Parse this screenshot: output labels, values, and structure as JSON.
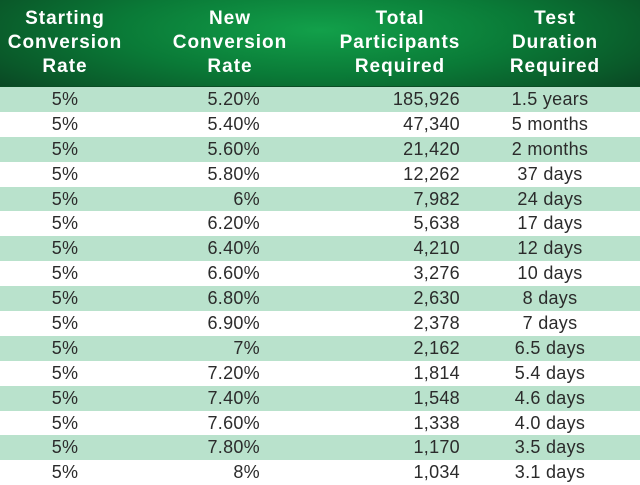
{
  "headers": {
    "starting": "Starting\nConversion\nRate",
    "new": "New\nConversion\nRate",
    "total": "Total\nParticipants\nRequired",
    "duration": "Test\nDuration\nRequired"
  },
  "rows": [
    {
      "start": "5%",
      "new": "5.20%",
      "total": "185,926",
      "duration": "1.5 years"
    },
    {
      "start": "5%",
      "new": "5.40%",
      "total": "47,340",
      "duration": "5 months"
    },
    {
      "start": "5%",
      "new": "5.60%",
      "total": "21,420",
      "duration": "2 months"
    },
    {
      "start": "5%",
      "new": "5.80%",
      "total": "12,262",
      "duration": "37 days"
    },
    {
      "start": "5%",
      "new": "6%",
      "total": "7,982",
      "duration": "24 days"
    },
    {
      "start": "5%",
      "new": "6.20%",
      "total": "5,638",
      "duration": "17 days"
    },
    {
      "start": "5%",
      "new": "6.40%",
      "total": "4,210",
      "duration": "12 days"
    },
    {
      "start": "5%",
      "new": "6.60%",
      "total": "3,276",
      "duration": "10 days"
    },
    {
      "start": "5%",
      "new": "6.80%",
      "total": "2,630",
      "duration": "8 days"
    },
    {
      "start": "5%",
      "new": "6.90%",
      "total": "2,378",
      "duration": "7 days"
    },
    {
      "start": "5%",
      "new": "7%",
      "total": "2,162",
      "duration": "6.5 days"
    },
    {
      "start": "5%",
      "new": "7.20%",
      "total": "1,814",
      "duration": "5.4 days"
    },
    {
      "start": "5%",
      "new": "7.40%",
      "total": "1,548",
      "duration": "4.6 days"
    },
    {
      "start": "5%",
      "new": "7.60%",
      "total": "1,338",
      "duration": "4.0 days"
    },
    {
      "start": "5%",
      "new": "7.80%",
      "total": "1,170",
      "duration": "3.5 days"
    },
    {
      "start": "5%",
      "new": "8%",
      "total": "1,034",
      "duration": "3.1 days"
    }
  ],
  "colors": {
    "header_green": "#0a7a37",
    "row_shade": "#b9e2cc",
    "row_white": "#ffffff",
    "header_text": "#ffffff",
    "body_text": "#2b2b2b"
  }
}
